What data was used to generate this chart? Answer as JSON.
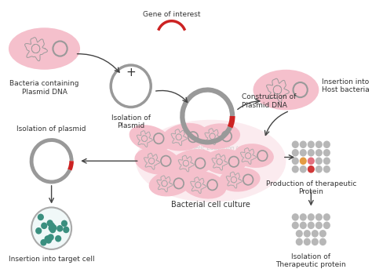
{
  "background_color": "#ffffff",
  "watermark": "© Genetic Education Inc.",
  "elements": {
    "gene_arc_color": "#cc2222",
    "plasmid_gray": "#999999",
    "plasmid_red": "#cc2222",
    "pink_fill": "#f5c0cc",
    "dna_squiggle": "#9a9a9a",
    "teal": "#3a8f7f",
    "dot_gray": "#b0b0b0",
    "dot_orange": "#e09030",
    "dot_pink": "#e06070",
    "dot_red": "#cc2222",
    "arrow_color": "#444444",
    "text_color": "#333333"
  },
  "labels": {
    "gene_of_interest": "Gene of interest",
    "bacteria_containing": "Bacteria containing\nPlasmid DNA",
    "isolation_plasmid": "Isolation of\nPlasmid",
    "construction": "Construction of\nPlasmid DNA",
    "insertion_host": "Insertion into\nHost bacteria",
    "bacterial_culture": "Bacterial cell culture",
    "isolation_plasmid2": "Isolation of plasmid",
    "insertion_target": "Insertion into target cell",
    "production": "Production of therapeutic\nProtein",
    "isolation_therapeutic": "Isolation of\nTherapeutic protein"
  },
  "font_size": 6.5
}
